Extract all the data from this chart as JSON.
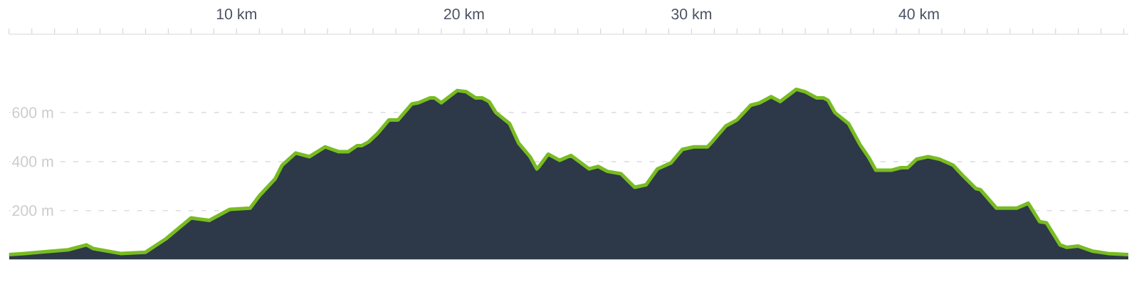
{
  "chart_data": {
    "type": "area",
    "x": [
      0,
      0.7,
      1.3,
      2.6,
      3.4,
      3.7,
      4.9,
      6.0,
      6.9,
      8.0,
      8.8,
      9.7,
      10.6,
      11.0,
      11.7,
      12.0,
      12.6,
      13.2,
      13.9,
      14.5,
      14.9,
      15.3,
      15.5,
      15.8,
      16.2,
      16.7,
      17.1,
      17.7,
      18.0,
      18.5,
      18.7,
      19.0,
      19.7,
      20.1,
      20.5,
      20.8,
      21.1,
      21.4,
      22.0,
      22.4,
      22.9,
      23.2,
      23.3,
      23.7,
      24.2,
      24.7,
      25.5,
      25.9,
      26.3,
      26.9,
      27.5,
      28.0,
      28.5,
      29.1,
      29.6,
      30.1,
      30.7,
      30.9,
      31.5,
      32.0,
      32.6,
      33.0,
      33.5,
      33.9,
      34.6,
      35.0,
      35.5,
      35.8,
      36.0,
      36.3,
      36.9,
      37.4,
      37.8,
      38.1,
      38.8,
      39.2,
      39.5,
      39.9,
      40.4,
      40.9,
      41.5,
      41.9,
      42.5,
      42.7,
      43.4,
      44.3,
      44.8,
      45.3,
      45.6,
      46.2,
      46.5,
      47.0,
      47.6,
      48.3,
      49.2
    ],
    "series": [
      {
        "color": "#2d3848",
        "values": [
          20,
          25,
          30,
          40,
          60,
          45,
          25,
          30,
          85,
          170,
          160,
          205,
          210,
          260,
          330,
          385,
          435,
          420,
          460,
          440,
          440,
          465,
          465,
          480,
          515,
          570,
          570,
          635,
          640,
          660,
          660,
          640,
          690,
          685,
          660,
          660,
          645,
          600,
          555,
          475,
          420,
          370,
          380,
          430,
          405,
          425,
          370,
          380,
          360,
          350,
          295,
          305,
          370,
          395,
          450,
          460,
          460,
          480,
          545,
          570,
          630,
          640,
          665,
          645,
          695,
          685,
          660,
          660,
          650,
          600,
          555,
          470,
          415,
          365,
          365,
          375,
          375,
          410,
          420,
          410,
          385,
          345,
          290,
          285,
          210,
          210,
          230,
          155,
          150,
          60,
          50,
          55,
          35,
          25,
          20
        ]
      }
    ],
    "xlim": [
      0,
      49.2
    ],
    "ylim": [
      0,
      920
    ],
    "xticks": [
      {
        "value": 0,
        "label": null
      },
      {
        "value": 1,
        "label": null
      },
      {
        "value": 2,
        "label": null
      },
      {
        "value": 3,
        "label": null
      },
      {
        "value": 4,
        "label": null
      },
      {
        "value": 5,
        "label": null
      },
      {
        "value": 6,
        "label": null
      },
      {
        "value": 7,
        "label": null
      },
      {
        "value": 8,
        "label": null
      },
      {
        "value": 9,
        "label": null
      },
      {
        "value": 10,
        "label": "10 km"
      },
      {
        "value": 11,
        "label": null
      },
      {
        "value": 12,
        "label": null
      },
      {
        "value": 13,
        "label": null
      },
      {
        "value": 14,
        "label": null
      },
      {
        "value": 15,
        "label": null
      },
      {
        "value": 16,
        "label": null
      },
      {
        "value": 17,
        "label": null
      },
      {
        "value": 18,
        "label": null
      },
      {
        "value": 19,
        "label": null
      },
      {
        "value": 20,
        "label": "20 km"
      },
      {
        "value": 21,
        "label": null
      },
      {
        "value": 22,
        "label": null
      },
      {
        "value": 23,
        "label": null
      },
      {
        "value": 24,
        "label": null
      },
      {
        "value": 25,
        "label": null
      },
      {
        "value": 26,
        "label": null
      },
      {
        "value": 27,
        "label": null
      },
      {
        "value": 28,
        "label": null
      },
      {
        "value": 29,
        "label": null
      },
      {
        "value": 30,
        "label": "30 km"
      },
      {
        "value": 31,
        "label": null
      },
      {
        "value": 32,
        "label": null
      },
      {
        "value": 33,
        "label": null
      },
      {
        "value": 34,
        "label": null
      },
      {
        "value": 35,
        "label": null
      },
      {
        "value": 36,
        "label": null
      },
      {
        "value": 37,
        "label": null
      },
      {
        "value": 38,
        "label": null
      },
      {
        "value": 39,
        "label": null
      },
      {
        "value": 40,
        "label": "40 km"
      },
      {
        "value": 41,
        "label": null
      },
      {
        "value": 42,
        "label": null
      },
      {
        "value": 43,
        "label": null
      },
      {
        "value": 44,
        "label": null
      },
      {
        "value": 45,
        "label": null
      },
      {
        "value": 46,
        "label": null
      },
      {
        "value": 47,
        "label": null
      },
      {
        "value": 48,
        "label": null
      },
      {
        "value": 49,
        "label": null
      }
    ],
    "yticks": [
      {
        "value": 200,
        "label": "200 m"
      },
      {
        "value": 400,
        "label": "400 m"
      },
      {
        "value": 600,
        "label": "600 m"
      }
    ],
    "grid": "y"
  }
}
